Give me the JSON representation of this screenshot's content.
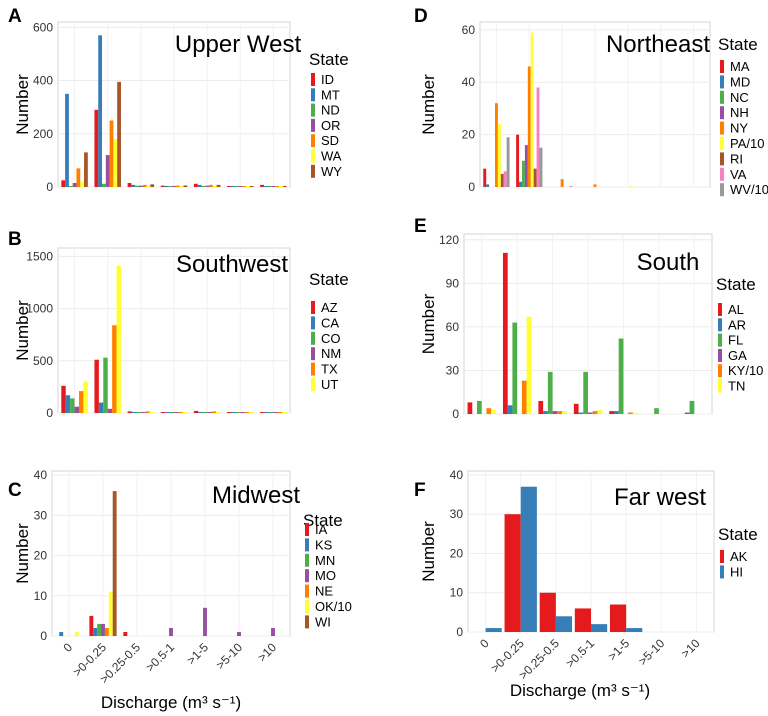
{
  "figure": {
    "xlabel": "Discharge (m³ s⁻¹)",
    "ylabel": "Number",
    "legend_title": "State",
    "categories": [
      "0",
      ">0-0.25",
      ">0.25-0.5",
      ">0.5-1",
      ">1-5",
      ">5-10",
      ">10"
    ]
  },
  "state_colors": {
    "ID": "#e41a1c",
    "MT": "#377eb8",
    "ND": "#4daf4a",
    "OR": "#984ea3",
    "SD": "#ff7f00",
    "WA": "#ffff33",
    "WY": "#a65628",
    "AZ": "#e41a1c",
    "CA": "#377eb8",
    "CO": "#4daf4a",
    "NM": "#984ea3",
    "TX": "#ff7f00",
    "UT": "#ffff33",
    "IA": "#e41a1c",
    "KS": "#377eb8",
    "MN": "#4daf4a",
    "MO": "#984ea3",
    "NE": "#ff7f00",
    "OK/10": "#ffff33",
    "WI": "#a65628",
    "MA": "#e41a1c",
    "MD": "#377eb8",
    "NC": "#4daf4a",
    "NH": "#984ea3",
    "NY": "#ff7f00",
    "PA/10": "#ffff33",
    "RI": "#a65628",
    "VA": "#f781bf",
    "WV/10": "#999999",
    "AL": "#e41a1c",
    "AR": "#377eb8",
    "FL": "#4daf4a",
    "GA": "#984ea3",
    "KY/10": "#ff7f00",
    "TN": "#ffff33",
    "AK": "#e41a1c",
    "HI": "#377eb8"
  },
  "chart_data": [
    {
      "letter": "A",
      "title": "Upper West",
      "type": "bar",
      "categories": [
        "0",
        ">0-0.25",
        ">0.25-0.5",
        ">0.5-1",
        ">1-5",
        ">5-10",
        ">10"
      ],
      "ylim": [
        0,
        620
      ],
      "yticks": [
        0,
        200,
        400,
        600
      ],
      "show_xticks": false,
      "series": [
        {
          "name": "ID",
          "values": [
            25,
            290,
            15,
            5,
            12,
            3,
            8
          ]
        },
        {
          "name": "MT",
          "values": [
            350,
            570,
            8,
            4,
            8,
            4,
            3
          ]
        },
        {
          "name": "ND",
          "values": [
            3,
            12,
            5,
            2,
            3,
            1,
            1
          ]
        },
        {
          "name": "OR",
          "values": [
            15,
            120,
            5,
            4,
            5,
            3,
            2
          ]
        },
        {
          "name": "SD",
          "values": [
            70,
            250,
            8,
            5,
            8,
            2,
            2
          ]
        },
        {
          "name": "WA",
          "values": [
            20,
            180,
            6,
            3,
            4,
            2,
            1
          ]
        },
        {
          "name": "WY",
          "values": [
            130,
            395,
            10,
            6,
            8,
            3,
            4
          ]
        }
      ]
    },
    {
      "letter": "B",
      "title": "Southwest",
      "type": "bar",
      "categories": [
        "0",
        ">0-0.25",
        ">0.25-0.5",
        ">0.5-1",
        ">1-5",
        ">5-10",
        ">10"
      ],
      "ylim": [
        0,
        1580
      ],
      "yticks": [
        0,
        500,
        1000,
        1500
      ],
      "show_xticks": false,
      "series": [
        {
          "name": "AZ",
          "values": [
            260,
            510,
            15,
            5,
            20,
            5,
            5
          ]
        },
        {
          "name": "CA",
          "values": [
            170,
            100,
            5,
            3,
            8,
            2,
            2
          ]
        },
        {
          "name": "CO",
          "values": [
            140,
            530,
            10,
            5,
            10,
            2,
            2
          ]
        },
        {
          "name": "NM",
          "values": [
            60,
            40,
            5,
            2,
            3,
            1,
            1
          ]
        },
        {
          "name": "TX",
          "values": [
            210,
            840,
            15,
            10,
            15,
            5,
            5
          ]
        },
        {
          "name": "UT",
          "values": [
            300,
            1410,
            10,
            8,
            10,
            5,
            5
          ]
        }
      ]
    },
    {
      "letter": "C",
      "title": "Midwest",
      "type": "bar",
      "categories": [
        "0",
        ">0-0.25",
        ">0.25-0.5",
        ">0.5-1",
        ">1-5",
        ">5-10",
        ">10"
      ],
      "ylim": [
        0,
        41
      ],
      "yticks": [
        0,
        10,
        20,
        30,
        40
      ],
      "show_xticks": true,
      "series": [
        {
          "name": "IA",
          "values": [
            0,
            5,
            1,
            0,
            0,
            0,
            0
          ]
        },
        {
          "name": "KS",
          "values": [
            1,
            2,
            0,
            0,
            0,
            0,
            0
          ]
        },
        {
          "name": "MN",
          "values": [
            0,
            3,
            0,
            0,
            0,
            0,
            0
          ]
        },
        {
          "name": "MO",
          "values": [
            0,
            3,
            0,
            2,
            7,
            1,
            2
          ]
        },
        {
          "name": "NE",
          "values": [
            0,
            2,
            0,
            0,
            0,
            0,
            0
          ]
        },
        {
          "name": "OK/10",
          "values": [
            1,
            11,
            0,
            0,
            0,
            0,
            0
          ]
        },
        {
          "name": "WI",
          "values": [
            0,
            36,
            0,
            0,
            0,
            0,
            0
          ]
        }
      ]
    },
    {
      "letter": "D",
      "title": "Northeast",
      "type": "bar",
      "categories": [
        "0",
        ">0-0.25",
        ">0.25-0.5",
        ">0.5-1",
        ">1-5",
        ">5-10",
        ">10"
      ],
      "ylim": [
        0,
        63
      ],
      "yticks": [
        0,
        20,
        40,
        60
      ],
      "show_xticks": false,
      "series": [
        {
          "name": "MA",
          "values": [
            7,
            20,
            0,
            0,
            0,
            0,
            0
          ]
        },
        {
          "name": "MD",
          "values": [
            1,
            2,
            0,
            0,
            0,
            0,
            0
          ]
        },
        {
          "name": "NC",
          "values": [
            0,
            10,
            0,
            0,
            0,
            0,
            0
          ]
        },
        {
          "name": "NH",
          "values": [
            0,
            16,
            0,
            0,
            0,
            0,
            0
          ]
        },
        {
          "name": "NY",
          "values": [
            32,
            46,
            3,
            1,
            0,
            0,
            0
          ]
        },
        {
          "name": "PA/10",
          "values": [
            24,
            59,
            0,
            0,
            0.3,
            0,
            0
          ]
        },
        {
          "name": "RI",
          "values": [
            5,
            7,
            0,
            0,
            0,
            0,
            0
          ]
        },
        {
          "name": "VA",
          "values": [
            6,
            38,
            0.3,
            0,
            0,
            0,
            0
          ]
        },
        {
          "name": "WV/10",
          "values": [
            19,
            15,
            0,
            0,
            0,
            0,
            0
          ]
        }
      ]
    },
    {
      "letter": "E",
      "title": "South",
      "type": "bar",
      "categories": [
        "0",
        ">0-0.25",
        ">0.25-0.5",
        ">0.5-1",
        ">1-5",
        ">5-10",
        ">10"
      ],
      "ylim": [
        0,
        124
      ],
      "yticks": [
        0,
        30,
        60,
        90,
        120
      ],
      "show_xticks": false,
      "series": [
        {
          "name": "AL",
          "values": [
            8,
            111,
            9,
            7,
            2,
            0,
            0
          ]
        },
        {
          "name": "AR",
          "values": [
            0,
            6,
            2,
            1,
            2,
            0,
            1
          ]
        },
        {
          "name": "FL",
          "values": [
            9,
            63,
            29,
            29,
            52,
            4,
            9
          ]
        },
        {
          "name": "GA",
          "values": [
            0,
            0,
            2,
            1,
            0,
            0,
            0
          ]
        },
        {
          "name": "KY/10",
          "values": [
            4,
            23,
            2,
            2,
            1,
            0,
            0
          ]
        },
        {
          "name": "TN",
          "values": [
            3,
            67,
            2,
            3,
            1,
            0,
            0
          ]
        }
      ]
    },
    {
      "letter": "F",
      "title": "Far west",
      "type": "bar",
      "categories": [
        "0",
        ">0-0.25",
        ">0.25-0.5",
        ">0.5-1",
        ">1-5",
        ">5-10",
        ">10"
      ],
      "ylim": [
        0,
        41
      ],
      "yticks": [
        0,
        10,
        20,
        30,
        40
      ],
      "show_xticks": true,
      "series": [
        {
          "name": "AK",
          "values": [
            0,
            30,
            10,
            6,
            7,
            0,
            0
          ]
        },
        {
          "name": "HI",
          "values": [
            1,
            37,
            4,
            2,
            1,
            0,
            0
          ]
        }
      ]
    }
  ]
}
